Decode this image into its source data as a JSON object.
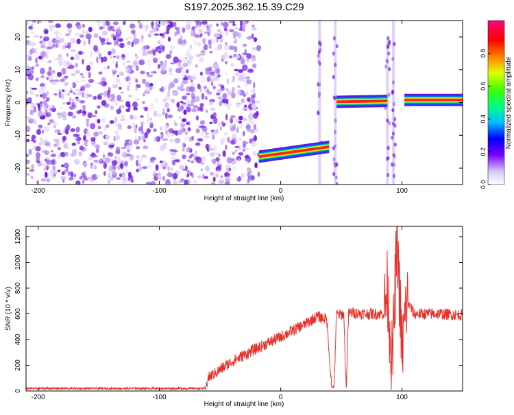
{
  "title": "S197.2025.362.15.39.C29",
  "chart_data": [
    {
      "type": "heatmap",
      "name": "spectrogram",
      "xlabel": "Height of straight line (km)",
      "ylabel": "Frequency (Hz)",
      "xlim": [
        -210,
        150
      ],
      "ylim": [
        -25,
        25
      ],
      "xticks": [
        -200,
        -100,
        0,
        100
      ],
      "yticks": [
        -20,
        -10,
        0,
        10,
        20
      ],
      "colorbar": {
        "label": "Normalized spectral amplitude",
        "range": [
          0,
          1
        ],
        "ticks": [
          0.0,
          0.2,
          0.4,
          0.6,
          0.8
        ]
      },
      "tracks": [
        {
          "x": [
            -18,
            40
          ],
          "freq": [
            -16.5,
            -13.5
          ]
        },
        {
          "x": [
            46,
            88
          ],
          "freq": [
            0.2,
            0.5
          ]
        },
        {
          "x": [
            102,
            150
          ],
          "freq": [
            0.8,
            0.8
          ]
        }
      ],
      "noise_region_x": [
        -210,
        -18
      ],
      "vertical_spikes_x": [
        32,
        45,
        88,
        93
      ]
    },
    {
      "type": "line",
      "name": "snr",
      "xlabel": "Height of straight line (km)",
      "ylabel": "SNR (10 * v/v)",
      "xlim": [
        -210,
        150
      ],
      "ylim": [
        0,
        1280
      ],
      "xticks": [
        -200,
        -100,
        0,
        100
      ],
      "yticks": [
        0,
        200,
        400,
        600,
        800,
        1000,
        1200
      ],
      "series": [
        {
          "name": "SNR",
          "color": "#e8302a",
          "x": [
            -210,
            -150,
            -100,
            -62,
            -60,
            -40,
            -20,
            0,
            20,
            30,
            38,
            42,
            44,
            46,
            48,
            52,
            54,
            56,
            58,
            70,
            85,
            88,
            92,
            96,
            100,
            104,
            110,
            130,
            150
          ],
          "y": [
            20,
            20,
            20,
            20,
            100,
            230,
            330,
            420,
            520,
            580,
            560,
            30,
            30,
            600,
            590,
            600,
            20,
            600,
            610,
            600,
            600,
            800,
            200,
            1200,
            300,
            700,
            600,
            600,
            590
          ]
        }
      ]
    }
  ]
}
